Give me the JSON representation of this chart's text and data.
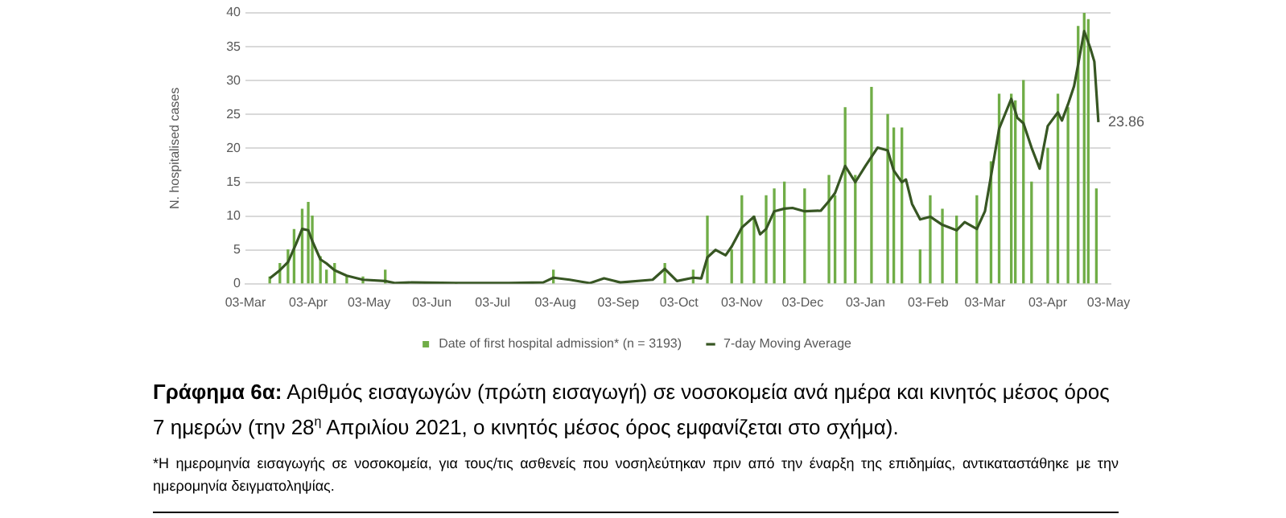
{
  "chart_data": {
    "type": "bar",
    "title": "Γράφημα 6α: Αριθμός εισαγωγών (πρώτη εισαγωγή) σε νοσοκομεία ανά ημέρα και κινητός μέσος όρος 7 ημερών (την 28$^{η}$ Απριλίου 2021, ο κινητός μέσος όρος εμφανίζεται στο σχήμα).",
    "ylabel": "N. hospitalised cases",
    "annotations": [
      {
        "text": "23.86",
        "x": "2021-04-28",
        "y": 23.86
      },
      "*Η ημερομηνία εισαγωγής σε νοσοκομεία, για τους/τις ασθενείς που νοσηλεύτηκαν πριν από την έναρξη της επιδημίας, αντικαταστάθηκε με την ημερομηνία δειγματοληψίας."
    ],
    "xlim": [
      "2020-03-03",
      "2021-05-04"
    ],
    "xticks": [
      {
        "value": "2020-03-03",
        "label": "03-Mar"
      },
      {
        "value": "2020-04-03",
        "label": "03-Apr"
      },
      {
        "value": "2020-05-03",
        "label": "03-May"
      },
      {
        "value": "2020-06-03",
        "label": "03-Jun"
      },
      {
        "value": "2020-07-03",
        "label": "03-Jul"
      },
      {
        "value": "2020-08-03",
        "label": "03-Aug"
      },
      {
        "value": "2020-09-03",
        "label": "03-Sep"
      },
      {
        "value": "2020-10-03",
        "label": "03-Oct"
      },
      {
        "value": "2020-11-03",
        "label": "03-Nov"
      },
      {
        "value": "2020-12-03",
        "label": "03-Dec"
      },
      {
        "value": "2021-01-03",
        "label": "03-Jan"
      },
      {
        "value": "2021-02-03",
        "label": "03-Feb"
      },
      {
        "value": "2021-03-03",
        "label": "03-Mar"
      },
      {
        "value": "2021-04-03",
        "label": "03-Apr"
      },
      {
        "value": "2021-05-03",
        "label": "03-May"
      }
    ],
    "ylim": [
      0,
      40
    ],
    "yticks": [
      0,
      5,
      10,
      15,
      20,
      25,
      30,
      35,
      40
    ],
    "grid": "y",
    "legend": "bottom",
    "series": [
      {
        "name": "Date of first hospital admission* (n = 3193)",
        "color": "#70ad47",
        "x": [
          "2020-03-15",
          "2020-03-20",
          "2020-03-24",
          "2020-03-27",
          "2020-03-31",
          "2020-04-03",
          "2020-04-05",
          "2020-04-09",
          "2020-04-12",
          "2020-04-16",
          "2020-04-22",
          "2020-04-30",
          "2020-05-11",
          "2020-06-15",
          "2020-08-02",
          "2020-09-26",
          "2020-10-10",
          "2020-10-17",
          "2020-10-29",
          "2020-11-03",
          "2020-11-09",
          "2020-11-15",
          "2020-11-19",
          "2020-11-24",
          "2020-12-04",
          "2020-12-16",
          "2020-12-19",
          "2020-12-24",
          "2020-12-29",
          "2021-01-06",
          "2021-01-14",
          "2021-01-17",
          "2021-01-21",
          "2021-01-30",
          "2021-02-04",
          "2021-02-10",
          "2021-02-17",
          "2021-02-27",
          "2021-03-06",
          "2021-03-10",
          "2021-03-16",
          "2021-03-18",
          "2021-03-22",
          "2021-03-26",
          "2021-04-03",
          "2021-04-08",
          "2021-04-13",
          "2021-04-18",
          "2021-04-21",
          "2021-04-23",
          "2021-04-27"
        ],
        "values": [
          1,
          3,
          5,
          8,
          11,
          12,
          10,
          4,
          2,
          3,
          1,
          1,
          2,
          0,
          2,
          3,
          2,
          10,
          5,
          13,
          10,
          13,
          14,
          15,
          14,
          16,
          13,
          26,
          16,
          29,
          25,
          23,
          23,
          5,
          13,
          11,
          10,
          13,
          18,
          28,
          28,
          27,
          30,
          15,
          20,
          28,
          26,
          38,
          40,
          39,
          14
        ]
      },
      {
        "name": "7-day Moving Average",
        "type": "line",
        "color": "#375623",
        "marker": "none",
        "x": [
          "2020-03-15",
          "2020-03-20",
          "2020-03-24",
          "2020-03-28",
          "2020-03-31",
          "2020-04-03",
          "2020-04-05",
          "2020-04-09",
          "2020-04-12",
          "2020-04-16",
          "2020-04-22",
          "2020-04-30",
          "2020-05-11",
          "2020-05-16",
          "2020-05-24",
          "2020-06-15",
          "2020-07-11",
          "2020-07-28",
          "2020-08-02",
          "2020-08-10",
          "2020-08-20",
          "2020-08-27",
          "2020-09-04",
          "2020-09-20",
          "2020-09-26",
          "2020-10-02",
          "2020-10-10",
          "2020-10-14",
          "2020-10-17",
          "2020-10-21",
          "2020-10-26",
          "2020-10-29",
          "2020-11-03",
          "2020-11-09",
          "2020-11-12",
          "2020-11-15",
          "2020-11-19",
          "2020-11-24",
          "2020-11-28",
          "2020-12-04",
          "2020-12-12",
          "2020-12-16",
          "2020-12-19",
          "2020-12-24",
          "2020-12-29",
          "2021-01-03",
          "2021-01-09",
          "2021-01-14",
          "2021-01-17",
          "2021-01-21",
          "2021-01-23",
          "2021-01-26",
          "2021-01-30",
          "2021-02-04",
          "2021-02-10",
          "2021-02-17",
          "2021-02-21",
          "2021-02-27",
          "2021-03-03",
          "2021-03-10",
          "2021-03-16",
          "2021-03-19",
          "2021-03-22",
          "2021-03-26",
          "2021-03-30",
          "2021-04-03",
          "2021-04-08",
          "2021-04-10",
          "2021-04-13",
          "2021-04-16",
          "2021-04-18",
          "2021-04-21",
          "2021-04-24",
          "2021-04-26",
          "2021-04-28"
        ],
        "values": [
          0.8,
          2,
          3.2,
          5.9,
          8.1,
          7.9,
          6.3,
          3.6,
          3,
          2,
          1.2,
          0.6,
          0.4,
          0.1,
          0.2,
          0.1,
          0.1,
          0.2,
          0.9,
          0.6,
          0.1,
          0.8,
          0.2,
          0.6,
          2.2,
          0.4,
          0.9,
          0.8,
          3.9,
          5,
          4.2,
          5.5,
          8.3,
          9.9,
          7.3,
          8.1,
          10.7,
          11.1,
          11.2,
          10.7,
          10.8,
          12.2,
          13.4,
          17.4,
          15,
          17.4,
          20.1,
          19.7,
          16.7,
          15,
          15.4,
          11.8,
          9.5,
          9.9,
          8.7,
          7.9,
          9.1,
          8.1,
          10.7,
          22.9,
          27.3,
          24.5,
          23.7,
          20.1,
          17,
          23.3,
          25.3,
          24.1,
          26.5,
          29.2,
          32.4,
          37.3,
          34.8,
          32.8,
          23.86
        ]
      }
    ]
  }
}
